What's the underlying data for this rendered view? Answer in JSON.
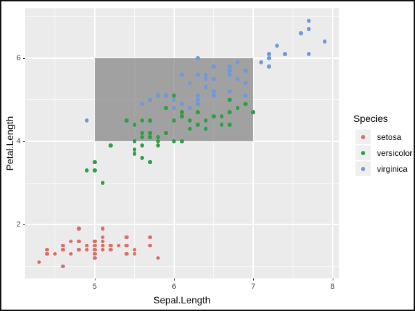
{
  "figure": {
    "x_axis_title": "Sepal.Length",
    "y_axis_title": "Petal.Length"
  },
  "legend": {
    "title": "Species",
    "items": [
      {
        "label": "setosa",
        "color": "#DB6E63"
      },
      {
        "label": "versicolor",
        "color": "#2DA042"
      },
      {
        "label": "virginica",
        "color": "#6E99DC"
      }
    ]
  },
  "colors": {
    "panel_bg": "#EBEBEB",
    "grid": "#FFFFFF",
    "rect_fill": "#A3A3A3",
    "tick_label": "#4D4D4D",
    "legend_key_bg": "#EFEFEF"
  },
  "chart_data": {
    "type": "scatter",
    "title": "",
    "xlabel": "Sepal.Length",
    "ylabel": "Petal.Length",
    "xlim": [
      4.12,
      8.08
    ],
    "ylim": [
      0.705,
      7.195
    ],
    "x_ticks": [
      5,
      6,
      7,
      8
    ],
    "y_ticks": [
      2,
      4,
      6
    ],
    "x_minor_ticks": [
      4.5,
      5.5,
      6.5,
      7.5
    ],
    "y_minor_ticks": [
      1,
      3,
      5,
      7
    ],
    "grid": true,
    "legend_title": "Species",
    "legend_position": "right",
    "annotations": [
      {
        "type": "rect",
        "xmin": 5,
        "xmax": 7,
        "ymin": 4,
        "ymax": 6,
        "fill": "gray"
      }
    ],
    "series": [
      {
        "name": "setosa",
        "color": "#DB6E63",
        "points": [
          [
            5.1,
            1.4
          ],
          [
            4.9,
            1.4
          ],
          [
            4.7,
            1.3
          ],
          [
            4.6,
            1.5
          ],
          [
            5.0,
            1.4
          ],
          [
            5.4,
            1.7
          ],
          [
            4.6,
            1.4
          ],
          [
            5.0,
            1.5
          ],
          [
            4.4,
            1.4
          ],
          [
            4.9,
            1.5
          ],
          [
            5.4,
            1.5
          ],
          [
            4.8,
            1.6
          ],
          [
            4.8,
            1.4
          ],
          [
            4.3,
            1.1
          ],
          [
            5.8,
            1.2
          ],
          [
            5.7,
            1.5
          ],
          [
            5.4,
            1.3
          ],
          [
            5.1,
            1.4
          ],
          [
            5.7,
            1.7
          ],
          [
            5.1,
            1.5
          ],
          [
            5.4,
            1.7
          ],
          [
            5.1,
            1.5
          ],
          [
            4.6,
            1.0
          ],
          [
            5.1,
            1.7
          ],
          [
            4.8,
            1.9
          ],
          [
            5.0,
            1.6
          ],
          [
            5.0,
            1.6
          ],
          [
            5.2,
            1.5
          ],
          [
            5.2,
            1.4
          ],
          [
            4.7,
            1.6
          ],
          [
            4.8,
            1.6
          ],
          [
            5.4,
            1.5
          ],
          [
            5.2,
            1.5
          ],
          [
            5.5,
            1.4
          ],
          [
            4.9,
            1.5
          ],
          [
            5.0,
            1.2
          ],
          [
            5.5,
            1.3
          ],
          [
            4.9,
            1.4
          ],
          [
            4.4,
            1.3
          ],
          [
            5.1,
            1.5
          ],
          [
            5.0,
            1.3
          ],
          [
            4.5,
            1.3
          ],
          [
            4.4,
            1.3
          ],
          [
            5.0,
            1.6
          ],
          [
            5.1,
            1.9
          ],
          [
            4.8,
            1.4
          ],
          [
            5.1,
            1.6
          ],
          [
            4.6,
            1.4
          ],
          [
            5.3,
            1.5
          ],
          [
            5.0,
            1.4
          ]
        ]
      },
      {
        "name": "versicolor",
        "color": "#2DA042",
        "points": [
          [
            7.0,
            4.7
          ],
          [
            6.4,
            4.5
          ],
          [
            6.9,
            4.9
          ],
          [
            5.5,
            4.0
          ],
          [
            6.5,
            4.6
          ],
          [
            5.7,
            4.5
          ],
          [
            6.3,
            4.7
          ],
          [
            4.9,
            3.3
          ],
          [
            6.6,
            4.6
          ],
          [
            5.2,
            3.9
          ],
          [
            5.0,
            3.5
          ],
          [
            5.9,
            4.2
          ],
          [
            6.0,
            4.0
          ],
          [
            6.1,
            4.7
          ],
          [
            5.6,
            3.6
          ],
          [
            6.7,
            4.4
          ],
          [
            5.6,
            4.5
          ],
          [
            5.8,
            4.1
          ],
          [
            6.2,
            4.5
          ],
          [
            5.6,
            3.9
          ],
          [
            5.9,
            4.8
          ],
          [
            6.1,
            4.0
          ],
          [
            6.3,
            4.9
          ],
          [
            6.1,
            4.7
          ],
          [
            6.4,
            4.3
          ],
          [
            6.6,
            4.4
          ],
          [
            6.8,
            4.8
          ],
          [
            6.7,
            5.0
          ],
          [
            6.0,
            4.5
          ],
          [
            5.7,
            3.5
          ],
          [
            5.5,
            3.8
          ],
          [
            5.5,
            3.7
          ],
          [
            5.8,
            3.9
          ],
          [
            6.0,
            5.1
          ],
          [
            5.4,
            4.5
          ],
          [
            6.0,
            4.5
          ],
          [
            6.7,
            4.7
          ],
          [
            6.3,
            4.4
          ],
          [
            5.6,
            4.1
          ],
          [
            5.5,
            4.0
          ],
          [
            5.5,
            4.4
          ],
          [
            6.1,
            4.6
          ],
          [
            5.8,
            4.0
          ],
          [
            5.0,
            3.3
          ],
          [
            5.6,
            4.2
          ],
          [
            5.7,
            4.2
          ],
          [
            5.7,
            4.2
          ],
          [
            6.2,
            4.3
          ],
          [
            5.1,
            3.0
          ],
          [
            5.7,
            4.1
          ]
        ]
      },
      {
        "name": "virginica",
        "color": "#6E99DC",
        "points": [
          [
            6.3,
            6.0
          ],
          [
            5.8,
            5.1
          ],
          [
            7.1,
            5.9
          ],
          [
            6.3,
            5.6
          ],
          [
            6.5,
            5.8
          ],
          [
            7.6,
            6.6
          ],
          [
            4.9,
            4.5
          ],
          [
            7.3,
            6.3
          ],
          [
            6.7,
            5.8
          ],
          [
            7.2,
            6.1
          ],
          [
            6.5,
            5.1
          ],
          [
            6.4,
            5.3
          ],
          [
            6.8,
            5.5
          ],
          [
            5.7,
            5.0
          ],
          [
            5.8,
            5.1
          ],
          [
            6.4,
            5.3
          ],
          [
            6.5,
            5.5
          ],
          [
            7.7,
            6.7
          ],
          [
            7.7,
            6.9
          ],
          [
            6.0,
            5.0
          ],
          [
            6.9,
            5.7
          ],
          [
            5.6,
            4.9
          ],
          [
            7.7,
            6.7
          ],
          [
            6.3,
            4.9
          ],
          [
            6.7,
            5.7
          ],
          [
            7.2,
            6.0
          ],
          [
            6.2,
            4.8
          ],
          [
            6.1,
            4.9
          ],
          [
            6.4,
            5.6
          ],
          [
            7.2,
            5.8
          ],
          [
            7.4,
            6.1
          ],
          [
            7.9,
            6.4
          ],
          [
            6.4,
            5.6
          ],
          [
            6.3,
            5.1
          ],
          [
            6.1,
            5.6
          ],
          [
            7.7,
            6.1
          ],
          [
            6.3,
            5.6
          ],
          [
            6.4,
            5.5
          ],
          [
            6.0,
            4.8
          ],
          [
            6.9,
            5.4
          ],
          [
            6.7,
            5.6
          ],
          [
            6.9,
            5.1
          ],
          [
            5.8,
            5.1
          ],
          [
            6.8,
            5.9
          ],
          [
            6.7,
            5.7
          ],
          [
            6.7,
            5.2
          ],
          [
            6.3,
            5.0
          ],
          [
            6.5,
            5.2
          ],
          [
            6.2,
            5.4
          ],
          [
            5.9,
            5.1
          ]
        ]
      }
    ]
  }
}
